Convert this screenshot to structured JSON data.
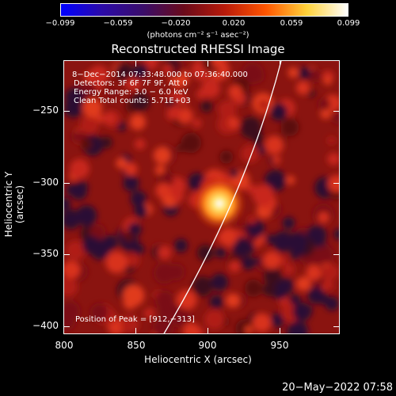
{
  "colorbar": {
    "tick_labels": [
      "−0.099",
      "−0.059",
      "−0.020",
      "0.020",
      "0.059",
      "0.099"
    ],
    "units": "(photons cm⁻² s⁻¹ asec⁻²)",
    "colors": [
      "#0000ff",
      "#2b0aa8",
      "#3a0d6a",
      "#6a0a1a",
      "#b81a0a",
      "#ff5500",
      "#ffd23a",
      "#ffffff"
    ]
  },
  "title": "Reconstructed RHESSI Image",
  "info": {
    "time_range": "8−Dec−2014 07:33:48.000 to 07:36:40.000",
    "detectors": "Detectors: 3F 6F 7F 9F, Att 0",
    "energy_range": "Energy Range: 3.0 − 6.0 keV",
    "clean_counts": "Clean     Total counts: 5.71E+03",
    "peak_position": "Position of Peak = [912,−313]"
  },
  "axes": {
    "xlabel": "Heliocentric X (arcsec)",
    "ylabel": "Heliocentric Y (arcsec)",
    "x_ticks": [
      "800",
      "850",
      "900",
      "950"
    ],
    "y_ticks": [
      "−250",
      "−300",
      "−350",
      "−400"
    ]
  },
  "peak": {
    "x": 912,
    "y": -313
  },
  "timestamp": "20−May−2022 07:58"
}
